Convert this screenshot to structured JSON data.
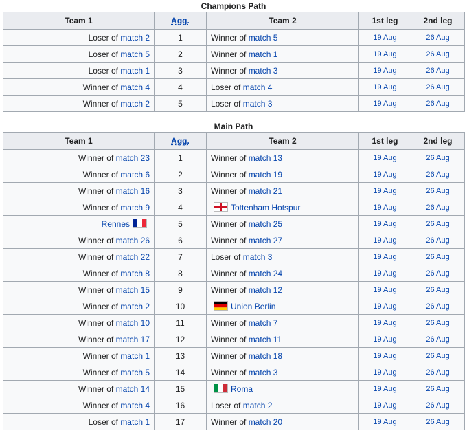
{
  "tables": [
    {
      "caption": "Champions Path",
      "columns": [
        "Team 1",
        "Agg.",
        "Team 2",
        "1st leg",
        "2nd leg"
      ],
      "rows": [
        [
          {
            "text": "Loser of ",
            "link": "match 2"
          },
          1,
          {
            "text": "Winner of ",
            "link": "match 5"
          },
          "19 Aug",
          "26 Aug"
        ],
        [
          {
            "text": "Loser of ",
            "link": "match 5"
          },
          2,
          {
            "text": "Winner of ",
            "link": "match 1"
          },
          "19 Aug",
          "26 Aug"
        ],
        [
          {
            "text": "Loser of ",
            "link": "match 1"
          },
          3,
          {
            "text": "Winner of ",
            "link": "match 3"
          },
          "19 Aug",
          "26 Aug"
        ],
        [
          {
            "text": "Winner of ",
            "link": "match 4"
          },
          4,
          {
            "text": "Loser of ",
            "link": "match 4"
          },
          "19 Aug",
          "26 Aug"
        ],
        [
          {
            "text": "Winner of ",
            "link": "match 2"
          },
          5,
          {
            "text": "Loser of ",
            "link": "match 3"
          },
          "19 Aug",
          "26 Aug"
        ]
      ]
    },
    {
      "caption": "Main Path",
      "columns": [
        "Team 1",
        "Agg.",
        "Team 2",
        "1st leg",
        "2nd leg"
      ],
      "rows": [
        [
          {
            "text": "Winner of ",
            "link": "match 23"
          },
          1,
          {
            "text": "Winner of ",
            "link": "match 13"
          },
          "19 Aug",
          "26 Aug"
        ],
        [
          {
            "text": "Winner of ",
            "link": "match 6"
          },
          2,
          {
            "text": "Winner of ",
            "link": "match 19"
          },
          "19 Aug",
          "26 Aug"
        ],
        [
          {
            "text": "Winner of ",
            "link": "match 16"
          },
          3,
          {
            "text": "Winner of ",
            "link": "match 21"
          },
          "19 Aug",
          "26 Aug"
        ],
        [
          {
            "text": "Winner of ",
            "link": "match 9"
          },
          4,
          {
            "link": "Tottenham Hotspur",
            "flag": "england"
          },
          "19 Aug",
          "26 Aug"
        ],
        [
          {
            "link": "Rennes",
            "flag": "france"
          },
          5,
          {
            "text": "Winner of ",
            "link": "match 25"
          },
          "19 Aug",
          "26 Aug"
        ],
        [
          {
            "text": "Winner of ",
            "link": "match 26"
          },
          6,
          {
            "text": "Winner of ",
            "link": "match 27"
          },
          "19 Aug",
          "26 Aug"
        ],
        [
          {
            "text": "Winner of ",
            "link": "match 22"
          },
          7,
          {
            "text": "Loser of ",
            "link": "match 3"
          },
          "19 Aug",
          "26 Aug"
        ],
        [
          {
            "text": "Winner of ",
            "link": "match 8"
          },
          8,
          {
            "text": "Winner of ",
            "link": "match 24"
          },
          "19 Aug",
          "26 Aug"
        ],
        [
          {
            "text": "Winner of ",
            "link": "match 15"
          },
          9,
          {
            "text": "Winner of ",
            "link": "match 12"
          },
          "19 Aug",
          "26 Aug"
        ],
        [
          {
            "text": "Winner of ",
            "link": "match 2"
          },
          10,
          {
            "link": "Union Berlin",
            "flag": "germany"
          },
          "19 Aug",
          "26 Aug"
        ],
        [
          {
            "text": "Winner of ",
            "link": "match 10"
          },
          11,
          {
            "text": "Winner of ",
            "link": "match 7"
          },
          "19 Aug",
          "26 Aug"
        ],
        [
          {
            "text": "Winner of ",
            "link": "match 17"
          },
          12,
          {
            "text": "Winner of ",
            "link": "match 11"
          },
          "19 Aug",
          "26 Aug"
        ],
        [
          {
            "text": "Winner of ",
            "link": "match 1"
          },
          13,
          {
            "text": "Winner of ",
            "link": "match 18"
          },
          "19 Aug",
          "26 Aug"
        ],
        [
          {
            "text": "Winner of ",
            "link": "match 5"
          },
          14,
          {
            "text": "Winner of ",
            "link": "match 3"
          },
          "19 Aug",
          "26 Aug"
        ],
        [
          {
            "text": "Winner of ",
            "link": "match 14"
          },
          15,
          {
            "link": "Roma",
            "flag": "italy"
          },
          "19 Aug",
          "26 Aug"
        ],
        [
          {
            "text": "Winner of ",
            "link": "match 4"
          },
          16,
          {
            "text": "Loser of ",
            "link": "match 2"
          },
          "19 Aug",
          "26 Aug"
        ],
        [
          {
            "text": "Loser of ",
            "link": "match 1"
          },
          17,
          {
            "text": "Winner of ",
            "link": "match 20"
          },
          "19 Aug",
          "26 Aug"
        ]
      ]
    }
  ]
}
